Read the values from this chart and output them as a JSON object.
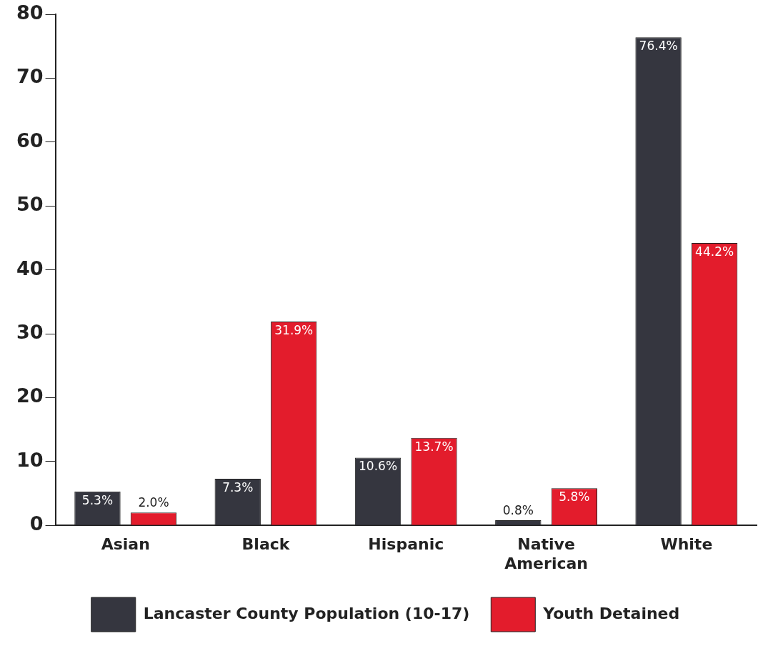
{
  "chart_data": {
    "type": "bar",
    "categories": [
      "Asian",
      "Black",
      "Hispanic",
      "Native American",
      "White"
    ],
    "series": [
      {
        "name": "Lancaster County Population (10-17)",
        "color": "#35363f",
        "values": [
          5.3,
          7.3,
          10.6,
          0.8,
          76.4
        ],
        "value_labels": [
          "5.3%",
          "7.3%",
          "10.6%",
          "0.8%",
          "76.4%"
        ]
      },
      {
        "name": "Youth Detained",
        "color": "#e31c2c",
        "values": [
          2.0,
          31.9,
          13.7,
          5.8,
          44.2
        ],
        "value_labels": [
          "2.0%",
          "31.9%",
          "13.7%",
          "5.8%",
          "44.2%"
        ]
      }
    ],
    "ylim": [
      0,
      80
    ],
    "yticks": [
      0,
      10,
      20,
      30,
      40,
      50,
      60,
      70,
      80
    ],
    "grid": false,
    "legend": "bottom"
  }
}
